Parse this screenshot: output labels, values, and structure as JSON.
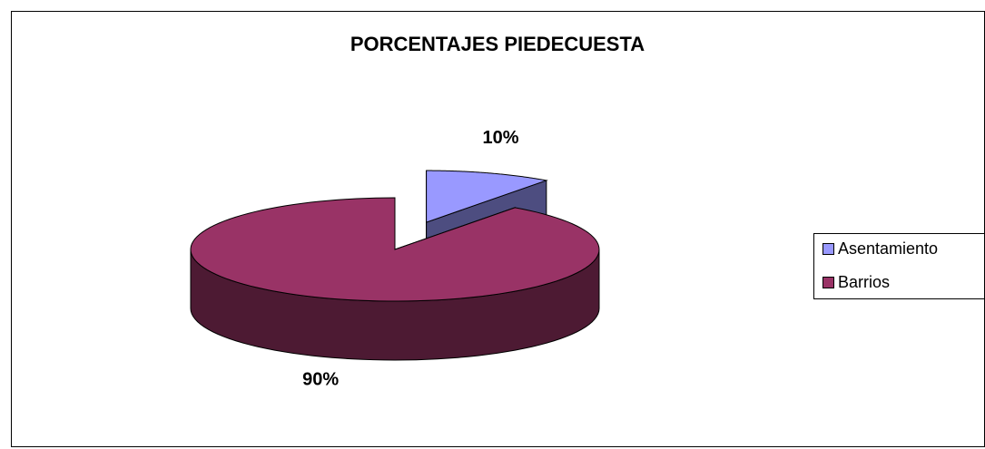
{
  "chart_data": {
    "type": "pie",
    "title": "PORCENTAJES PIEDECUESTA",
    "categories": [
      "Asentamiento",
      "Barrios"
    ],
    "values": [
      10,
      90
    ],
    "value_labels": [
      "10%",
      "90%"
    ],
    "colors": [
      "#9999ff",
      "#993366"
    ],
    "legend": "right"
  }
}
